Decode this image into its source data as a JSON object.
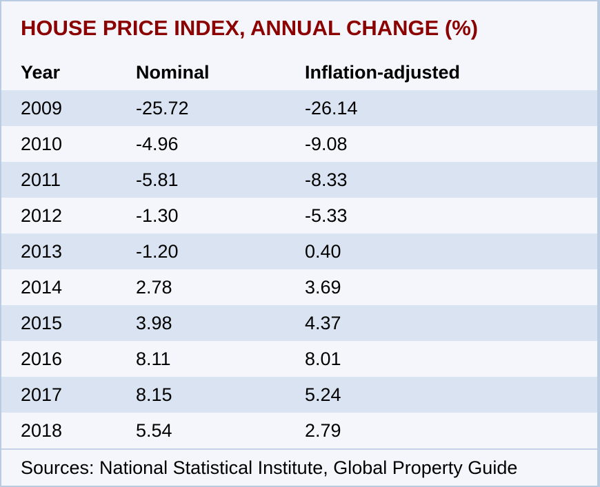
{
  "title": "HOUSE PRICE INDEX, ANNUAL CHANGE (%)",
  "table": {
    "columns": [
      "Year",
      "Nominal",
      "Inflation-adjusted"
    ],
    "rows": [
      [
        "2009",
        "-25.72",
        "-26.14"
      ],
      [
        "2010",
        "-4.96",
        "-9.08"
      ],
      [
        "2011",
        "-5.81",
        "-8.33"
      ],
      [
        "2012",
        "-1.30",
        "-5.33"
      ],
      [
        "2013",
        "-1.20",
        "0.40"
      ],
      [
        "2014",
        "2.78",
        "3.69"
      ],
      [
        "2015",
        "3.98",
        "4.37"
      ],
      [
        "2016",
        "8.11",
        "8.01"
      ],
      [
        "2017",
        "8.15",
        "5.24"
      ],
      [
        "2018",
        "5.54",
        "2.79"
      ]
    ]
  },
  "footer": {
    "sources": "Sources: National Statistical Institute, Global Property Guide"
  },
  "colors": {
    "title_red": "#8b0000",
    "row_blue": "#d9e3f1",
    "row_light": "#f5f6fb",
    "border_blue": "#b9cce2",
    "divider_blue": "#c3d2e6",
    "text_black": "#000000"
  },
  "chart_data": {
    "type": "table",
    "title": "HOUSE PRICE INDEX, ANNUAL CHANGE (%)",
    "columns": [
      "Year",
      "Nominal",
      "Inflation-adjusted"
    ],
    "rows": [
      [
        2009,
        -25.72,
        -26.14
      ],
      [
        2010,
        -4.96,
        -9.08
      ],
      [
        2011,
        -5.81,
        -8.33
      ],
      [
        2012,
        -1.3,
        -5.33
      ],
      [
        2013,
        -1.2,
        0.4
      ],
      [
        2014,
        2.78,
        3.69
      ],
      [
        2015,
        3.98,
        4.37
      ],
      [
        2016,
        8.11,
        8.01
      ],
      [
        2017,
        8.15,
        5.24
      ],
      [
        2018,
        5.54,
        2.79
      ]
    ],
    "source_note": "Sources: National Statistical Institute, Global Property Guide"
  }
}
